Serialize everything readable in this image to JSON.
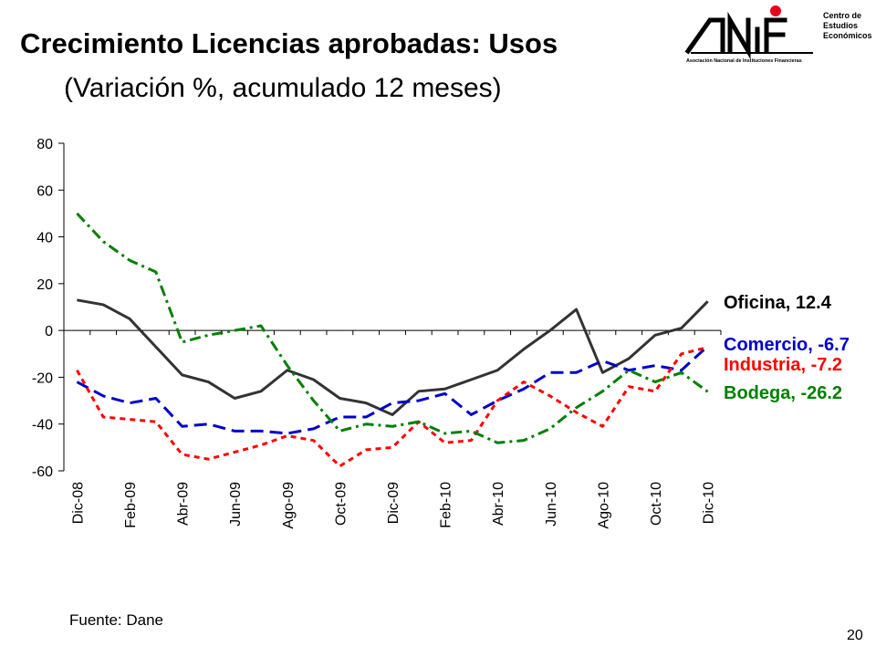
{
  "header": {
    "title": "Crecimiento Licencias aprobadas: Usos",
    "subtitle": "(Variación %, acumulado 12 meses)"
  },
  "logo": {
    "brand": "ANIF",
    "org_line1": "Centro de",
    "org_line2": "Estudios",
    "org_line3": "Económicos",
    "tagline": "Asociación Nacional de Instituciones Financieras",
    "colors": {
      "text": "#000000",
      "dot": "#e8001c"
    }
  },
  "footer": {
    "source": "Fuente: Dane",
    "page_number": "20"
  },
  "chart_data": {
    "type": "line",
    "title": "",
    "xlabel": "",
    "ylabel": "",
    "ylim": [
      -60,
      80
    ],
    "yticks": [
      80,
      60,
      40,
      20,
      0,
      -20,
      -40,
      -60
    ],
    "grid": false,
    "legend": "labels at line ends (right)",
    "categories": [
      "Dic-08",
      "Ene-09",
      "Feb-09",
      "Mar-09",
      "Abr-09",
      "May-09",
      "Jun-09",
      "Jul-09",
      "Ago-09",
      "Sep-09",
      "Oct-09",
      "Nov-09",
      "Dic-09",
      "Ene-10",
      "Feb-10",
      "Mar-10",
      "Abr-10",
      "May-10",
      "Jun-10",
      "Jul-10",
      "Ago-10",
      "Sep-10",
      "Oct-10",
      "Nov-10",
      "Dic-10"
    ],
    "tick_labels": [
      "Dic-08",
      "Feb-09",
      "Abr-09",
      "Jun-09",
      "Ago-09",
      "Oct-09",
      "Dic-09",
      "Feb-10",
      "Abr-10",
      "Jun-10",
      "Ago-10",
      "Oct-10",
      "Dic-10"
    ],
    "series": [
      {
        "name": "Oficina",
        "end_label": "Oficina, 12.4",
        "color": "#333333",
        "dash": "solid",
        "values": [
          13,
          11,
          5,
          -7,
          -19,
          -22,
          -29,
          -26,
          -17,
          -21,
          -29,
          -31,
          -36,
          -26,
          -25,
          -21,
          -17,
          -8,
          0,
          9,
          -18,
          -12,
          -2,
          1,
          12.4
        ]
      },
      {
        "name": "Comercio",
        "end_label": "Comercio, -6.7",
        "color": "#0000cc",
        "dash": "long-dash",
        "values": [
          -22,
          -28,
          -31,
          -29,
          -41,
          -40,
          -43,
          -43,
          -44,
          -42,
          -37,
          -37,
          -31,
          -30,
          -27,
          -36,
          -30,
          -25,
          -18,
          -18,
          -13,
          -17,
          -15,
          -17,
          -6.7
        ]
      },
      {
        "name": "Industria",
        "end_label": "Industria, -7.2",
        "color": "#ff0000",
        "dash": "short-dash",
        "values": [
          -17,
          -37,
          -38,
          -39,
          -53,
          -55,
          -52,
          -49,
          -45,
          -47,
          -58,
          -51,
          -50,
          -39,
          -48,
          -47,
          -30,
          -22,
          -28,
          -35,
          -41,
          -24,
          -26,
          -10,
          -7.2
        ]
      },
      {
        "name": "Bodega",
        "end_label": "Bodega, -26.2",
        "color": "#008000",
        "dash": "dash-dot",
        "values": [
          50,
          38,
          30,
          25,
          -5,
          -2,
          0,
          2,
          -15,
          -30,
          -43,
          -40,
          -41,
          -39,
          -44,
          -43,
          -48,
          -47,
          -42,
          -33,
          -26,
          -17,
          -22,
          -18,
          -26.2
        ]
      }
    ]
  }
}
